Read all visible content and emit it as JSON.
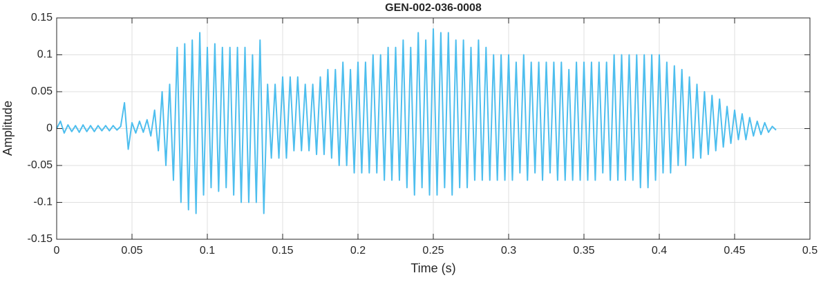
{
  "chart_data": {
    "type": "line",
    "title": "GEN-002-036-0008",
    "x_label": "Time (s)",
    "y_label": "Amplitude",
    "color": "#4dbeee",
    "grid": true,
    "xlim": [
      0,
      0.5
    ],
    "xticks": [
      0,
      0.05,
      0.1,
      0.15,
      0.2,
      0.25,
      0.3,
      0.35,
      0.4,
      0.45,
      0.5
    ],
    "ylim": [
      -0.15,
      0.15
    ],
    "yticks": [
      -0.15,
      -0.1,
      -0.05,
      0,
      0.05,
      0.1,
      0.15
    ],
    "x": [
      0,
      0.0025,
      0.005,
      0.0075,
      0.01,
      0.0125,
      0.015,
      0.0175,
      0.02,
      0.0225,
      0.025,
      0.0275,
      0.03,
      0.0325,
      0.035,
      0.0375,
      0.04,
      0.0425,
      0.045,
      0.0475,
      0.05,
      0.0525,
      0.055,
      0.0575,
      0.06,
      0.0625,
      0.065,
      0.0675,
      0.07,
      0.0725,
      0.075,
      0.0775,
      0.08,
      0.0825,
      0.085,
      0.0875,
      0.09,
      0.0925,
      0.095,
      0.0975,
      0.1,
      0.1025,
      0.105,
      0.1075,
      0.11,
      0.1125,
      0.115,
      0.1175,
      0.12,
      0.1225,
      0.125,
      0.1275,
      0.13,
      0.1325,
      0.135,
      0.1375,
      0.14,
      0.1425,
      0.145,
      0.1475,
      0.15,
      0.1525,
      0.155,
      0.1575,
      0.16,
      0.1625,
      0.165,
      0.1675,
      0.17,
      0.1725,
      0.175,
      0.1775,
      0.18,
      0.1825,
      0.185,
      0.1875,
      0.19,
      0.1925,
      0.195,
      0.1975,
      0.2,
      0.2025,
      0.205,
      0.2075,
      0.21,
      0.2125,
      0.215,
      0.2175,
      0.22,
      0.2225,
      0.225,
      0.2275,
      0.23,
      0.2325,
      0.235,
      0.2375,
      0.24,
      0.2425,
      0.245,
      0.2475,
      0.25,
      0.2525,
      0.255,
      0.2575,
      0.26,
      0.2625,
      0.265,
      0.2675,
      0.27,
      0.2725,
      0.275,
      0.2775,
      0.28,
      0.2825,
      0.285,
      0.2875,
      0.29,
      0.2925,
      0.295,
      0.2975,
      0.3,
      0.3025,
      0.305,
      0.3075,
      0.31,
      0.3125,
      0.315,
      0.3175,
      0.32,
      0.3225,
      0.325,
      0.3275,
      0.33,
      0.3325,
      0.335,
      0.3375,
      0.34,
      0.3425,
      0.345,
      0.3475,
      0.35,
      0.3525,
      0.355,
      0.3575,
      0.36,
      0.3625,
      0.365,
      0.3675,
      0.37,
      0.3725,
      0.375,
      0.3775,
      0.38,
      0.3825,
      0.385,
      0.3875,
      0.39,
      0.3925,
      0.395,
      0.3975,
      0.4,
      0.4025,
      0.405,
      0.4075,
      0.41,
      0.4125,
      0.415,
      0.4175,
      0.42,
      0.4225,
      0.425,
      0.4275,
      0.43,
      0.4325,
      0.435,
      0.4375,
      0.44,
      0.4425,
      0.445,
      0.4475,
      0.45,
      0.4525,
      0.455,
      0.4575,
      0.46,
      0.4625,
      0.465,
      0.4675,
      0.47,
      0.4725,
      0.475,
      0.4775
    ],
    "values": [
      0,
      0.01,
      -0.006,
      0.005,
      -0.004,
      0.004,
      -0.005,
      0.005,
      -0.004,
      0.004,
      -0.004,
      0.004,
      -0.003,
      0.004,
      -0.003,
      0.004,
      -0.002,
      0.003,
      0.035,
      -0.028,
      0.008,
      -0.006,
      0.01,
      -0.005,
      0.012,
      -0.01,
      0.025,
      -0.03,
      0.05,
      -0.05,
      0.06,
      -0.07,
      0.11,
      -0.1,
      0.115,
      -0.11,
      0.12,
      -0.115,
      0.13,
      -0.09,
      0.11,
      -0.08,
      0.115,
      -0.085,
      0.11,
      -0.08,
      0.11,
      -0.09,
      0.11,
      -0.1,
      0.11,
      -0.1,
      0.1,
      -0.1,
      0.12,
      -0.115,
      0.06,
      -0.04,
      0.06,
      -0.04,
      0.07,
      -0.04,
      0.07,
      -0.03,
      0.07,
      -0.03,
      0.06,
      -0.03,
      0.06,
      -0.035,
      0.07,
      -0.035,
      0.08,
      -0.04,
      0.08,
      -0.05,
      0.09,
      -0.05,
      0.08,
      -0.06,
      0.09,
      -0.06,
      0.09,
      -0.06,
      0.1,
      -0.06,
      0.1,
      -0.07,
      0.11,
      -0.07,
      0.11,
      -0.07,
      0.12,
      -0.08,
      0.11,
      -0.09,
      0.13,
      -0.08,
      0.12,
      -0.09,
      0.135,
      -0.09,
      0.13,
      -0.08,
      0.13,
      -0.09,
      0.12,
      -0.08,
      0.12,
      -0.08,
      0.11,
      -0.07,
      0.12,
      -0.07,
      0.11,
      -0.07,
      0.1,
      -0.07,
      0.1,
      -0.07,
      0.1,
      -0.07,
      0.09,
      -0.06,
      0.1,
      -0.07,
      0.09,
      -0.06,
      0.09,
      -0.07,
      0.09,
      -0.06,
      0.09,
      -0.07,
      0.09,
      -0.07,
      0.08,
      -0.07,
      0.09,
      -0.07,
      0.09,
      -0.07,
      0.09,
      -0.07,
      0.09,
      -0.06,
      0.09,
      -0.07,
      0.1,
      -0.07,
      0.1,
      -0.07,
      0.1,
      -0.07,
      0.1,
      -0.08,
      0.1,
      -0.08,
      0.1,
      -0.07,
      0.1,
      -0.06,
      0.09,
      -0.06,
      0.085,
      -0.05,
      0.08,
      -0.05,
      0.07,
      -0.04,
      0.06,
      -0.04,
      0.05,
      -0.035,
      0.045,
      -0.03,
      0.04,
      -0.025,
      0.03,
      -0.02,
      0.025,
      -0.015,
      0.02,
      -0.015,
      0.015,
      -0.01,
      0.01,
      -0.008,
      0.008,
      -0.005,
      0.003,
      -0.002
    ]
  }
}
